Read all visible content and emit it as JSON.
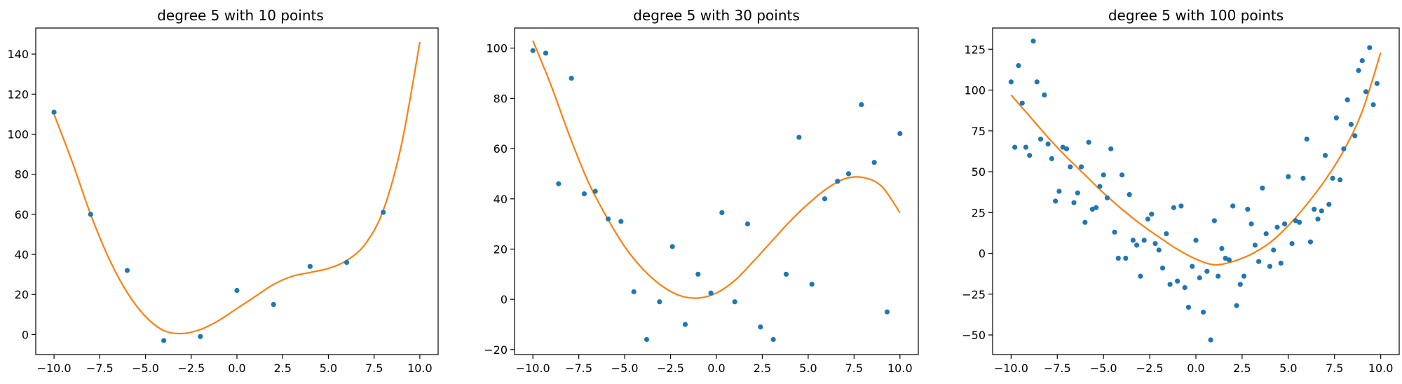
{
  "chart_data": [
    {
      "type": "scatter",
      "title": "degree 5 with 10 points",
      "xlabel": "",
      "ylabel": "",
      "xlim": [
        -11,
        11
      ],
      "ylim": [
        -10,
        153
      ],
      "xticks": [
        -10,
        -7.5,
        -5,
        -2.5,
        0,
        2.5,
        5,
        7.5,
        10
      ],
      "xtick_labels": [
        "−10.0",
        "−7.5",
        "−5.0",
        "−2.5",
        "0.0",
        "2.5",
        "5.0",
        "7.5",
        "10.0"
      ],
      "yticks": [
        0,
        20,
        40,
        60,
        80,
        100,
        120,
        140
      ],
      "ytick_labels": [
        "0",
        "20",
        "40",
        "60",
        "80",
        "100",
        "120",
        "140"
      ],
      "grid": false,
      "points_color": "#1f77b4",
      "curve_color": "#ff7f0e",
      "points": {
        "x": [
          -10,
          -8,
          -6,
          -4,
          -2,
          0,
          2,
          4,
          6,
          8
        ],
        "y": [
          111,
          60,
          32,
          -3,
          -1,
          22,
          15,
          34,
          36,
          61
        ]
      },
      "curve": {
        "x": [
          -10,
          -9,
          -8,
          -7,
          -6,
          -5,
          -4,
          -3,
          -2,
          -1,
          0,
          1,
          2,
          3,
          4,
          5,
          6,
          7,
          8,
          9,
          10
        ],
        "y": [
          110,
          86,
          60,
          38,
          21,
          9,
          2,
          0.5,
          2.5,
          7,
          13,
          19,
          25,
          29,
          31,
          33,
          37,
          45,
          62,
          95,
          146
        ]
      }
    },
    {
      "type": "scatter",
      "title": "degree 5 with 30 points",
      "xlabel": "",
      "ylabel": "",
      "xlim": [
        -11,
        11
      ],
      "ylim": [
        -22,
        108
      ],
      "xticks": [
        -10,
        -7.5,
        -5,
        -2.5,
        0,
        2.5,
        5,
        7.5,
        10
      ],
      "xtick_labels": [
        "−10.0",
        "−7.5",
        "−5.0",
        "−2.5",
        "0.0",
        "2.5",
        "5.0",
        "7.5",
        "10.0"
      ],
      "yticks": [
        -20,
        0,
        20,
        40,
        60,
        80,
        100
      ],
      "ytick_labels": [
        "−20",
        "0",
        "20",
        "40",
        "60",
        "80",
        "100"
      ],
      "grid": false,
      "points_color": "#1f77b4",
      "curve_color": "#ff7f0e",
      "points": {
        "x": [
          -10,
          -9.3,
          -8.6,
          -7.9,
          -7.2,
          -6.6,
          -5.9,
          -5.2,
          -4.5,
          -3.8,
          -3.1,
          -2.4,
          -1.7,
          -1.0,
          -0.3,
          0.3,
          1.0,
          1.7,
          2.4,
          3.1,
          3.8,
          4.5,
          5.2,
          5.9,
          6.6,
          7.2,
          7.9,
          8.6,
          9.3,
          10
        ],
        "y": [
          99,
          98,
          46,
          88,
          42,
          43,
          32,
          31,
          3,
          -16,
          -1,
          21,
          -10,
          10,
          2.5,
          34.5,
          -1,
          30,
          -11,
          -16,
          10,
          64.5,
          6,
          40,
          47,
          50,
          77.5,
          54.5,
          -5,
          66
        ]
      },
      "curve": {
        "x": [
          -10,
          -9,
          -8,
          -7,
          -6,
          -5,
          -4,
          -3,
          -2,
          -1,
          0,
          1,
          2,
          3,
          4,
          5,
          6,
          7,
          8,
          9,
          10
        ],
        "y": [
          103,
          85,
          65,
          47,
          33,
          21,
          12,
          5.5,
          1.5,
          0.5,
          2.5,
          7.5,
          15,
          23,
          31,
          38,
          44,
          48,
          48.5,
          45,
          34.5
        ]
      }
    },
    {
      "type": "scatter",
      "title": "degree 5 with 100 points",
      "xlabel": "",
      "ylabel": "",
      "xlim": [
        -11,
        11
      ],
      "ylim": [
        -62,
        138
      ],
      "xticks": [
        -10,
        -7.5,
        -5,
        -2.5,
        0,
        2.5,
        5,
        7.5,
        10
      ],
      "xtick_labels": [
        "−10.0",
        "−7.5",
        "−5.0",
        "−2.5",
        "0.0",
        "2.5",
        "5.0",
        "7.5",
        "10.0"
      ],
      "yticks": [
        -50,
        -25,
        0,
        25,
        50,
        75,
        100,
        125
      ],
      "ytick_labels": [
        "−50",
        "−25",
        "0",
        "25",
        "50",
        "75",
        "100",
        "125"
      ],
      "grid": false,
      "points_color": "#1f77b4",
      "curve_color": "#ff7f0e",
      "points": {
        "x": [
          -10.0,
          -9.8,
          -9.6,
          -9.4,
          -9.2,
          -9.0,
          -8.8,
          -8.6,
          -8.4,
          -8.2,
          -8.0,
          -7.8,
          -7.6,
          -7.4,
          -7.2,
          -7.0,
          -6.8,
          -6.6,
          -6.4,
          -6.2,
          -6.0,
          -5.8,
          -5.6,
          -5.4,
          -5.2,
          -5.0,
          -4.8,
          -4.6,
          -4.4,
          -4.2,
          -4.0,
          -3.8,
          -3.6,
          -3.4,
          -3.2,
          -3.0,
          -2.8,
          -2.6,
          -2.4,
          -2.2,
          -2.0,
          -1.8,
          -1.6,
          -1.4,
          -1.2,
          -1.0,
          -0.8,
          -0.6,
          -0.4,
          -0.2,
          0.0,
          0.2,
          0.4,
          0.6,
          0.8,
          1.0,
          1.2,
          1.4,
          1.6,
          1.8,
          2.0,
          2.2,
          2.4,
          2.6,
          2.8,
          3.0,
          3.2,
          3.4,
          3.6,
          3.8,
          4.0,
          4.2,
          4.4,
          4.6,
          4.8,
          5.0,
          5.2,
          5.4,
          5.6,
          5.8,
          6.0,
          6.2,
          6.4,
          6.6,
          6.8,
          7.0,
          7.2,
          7.4,
          7.6,
          7.8,
          8.0,
          8.2,
          8.4,
          8.6,
          8.8,
          9.0,
          9.2,
          9.4,
          9.6,
          9.8
        ],
        "y": [
          105,
          65,
          115,
          92,
          65,
          60,
          130,
          105,
          70,
          97,
          67,
          58,
          32,
          38,
          65,
          64,
          53,
          31,
          37,
          53,
          19,
          68,
          27,
          28,
          41,
          48,
          34,
          64,
          13,
          -3,
          48,
          -3,
          36,
          8,
          5,
          -14,
          8,
          21,
          24,
          6,
          2,
          -9,
          12,
          -19,
          28,
          -17,
          29,
          -21,
          -33,
          -8,
          8,
          -15,
          -36,
          -11,
          -53,
          20,
          -14,
          3,
          -3,
          -4,
          29,
          -32,
          -19,
          -14,
          27,
          18,
          5,
          -5,
          40,
          12,
          -8,
          2,
          16,
          -6,
          18,
          47,
          6,
          20,
          19,
          46,
          70,
          7,
          27,
          21,
          26,
          60,
          30,
          46,
          83,
          45,
          64,
          94,
          79,
          72,
          112,
          118,
          99,
          126,
          91,
          104
        ]
      },
      "curve": {
        "x": [
          -10,
          -9,
          -8,
          -7,
          -6,
          -5,
          -4,
          -3,
          -2,
          -1,
          0,
          1,
          2,
          3,
          4,
          5,
          6,
          7,
          8,
          9,
          10
        ],
        "y": [
          97,
          84,
          71,
          59,
          48,
          37,
          27,
          18,
          10,
          2.5,
          -3.5,
          -7,
          -5,
          -0.5,
          6.5,
          17,
          30,
          45,
          63,
          87,
          123
        ]
      }
    }
  ]
}
